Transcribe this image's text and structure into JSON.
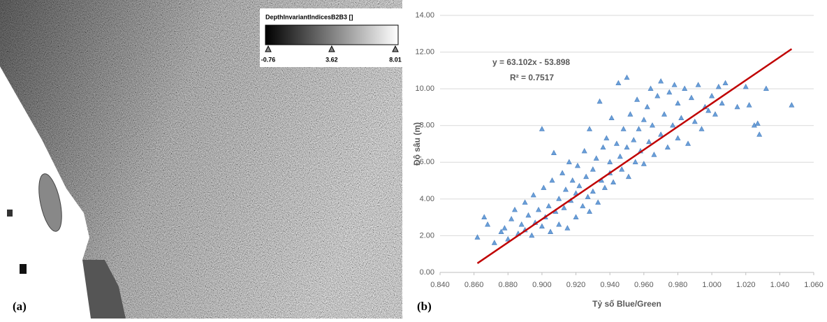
{
  "panel_a": {
    "label": "(a)",
    "legend_title": "DepthInvariantIndicesB2B3 []",
    "legend_ticks": [
      -0.76,
      3.62,
      8.01
    ]
  },
  "chart_data": {
    "type": "scatter",
    "panel_label": "(b)",
    "xlabel": "Tỷ số Blue/Green",
    "ylabel": "Độ sâu (m)",
    "xlim": [
      0.84,
      1.06
    ],
    "ylim": [
      0,
      14
    ],
    "xticks": [
      {
        "value": 0.84,
        "label": "0.840"
      },
      {
        "value": 0.86,
        "label": "0.860"
      },
      {
        "value": 0.88,
        "label": "0.880"
      },
      {
        "value": 0.9,
        "label": "0.900"
      },
      {
        "value": 0.92,
        "label": "0.920"
      },
      {
        "value": 0.94,
        "label": "0.940"
      },
      {
        "value": 0.96,
        "label": "0.960"
      },
      {
        "value": 0.98,
        "label": "0.980"
      },
      {
        "value": 1.0,
        "label": "1.000"
      },
      {
        "value": 1.02,
        "label": "1.020"
      },
      {
        "value": 1.04,
        "label": "1.040"
      },
      {
        "value": 1.06,
        "label": "1.060"
      }
    ],
    "yticks": [
      {
        "value": 0,
        "label": "0.00"
      },
      {
        "value": 2,
        "label": "2.00"
      },
      {
        "value": 4,
        "label": "4.00"
      },
      {
        "value": 6,
        "label": "6.00"
      },
      {
        "value": 8,
        "label": "8.00"
      },
      {
        "value": 10,
        "label": "10.00"
      },
      {
        "value": 12,
        "label": "12.00"
      },
      {
        "value": 14,
        "label": "14.00"
      }
    ],
    "color": "#6a9fd8",
    "x": [
      0.862,
      0.866,
      0.868,
      0.872,
      0.876,
      0.878,
      0.88,
      0.882,
      0.884,
      0.886,
      0.888,
      0.89,
      0.89,
      0.892,
      0.894,
      0.895,
      0.896,
      0.898,
      0.9,
      0.9,
      0.901,
      0.902,
      0.904,
      0.905,
      0.906,
      0.907,
      0.908,
      0.91,
      0.91,
      0.912,
      0.913,
      0.914,
      0.915,
      0.916,
      0.917,
      0.918,
      0.92,
      0.92,
      0.921,
      0.922,
      0.924,
      0.925,
      0.926,
      0.927,
      0.928,
      0.928,
      0.93,
      0.93,
      0.932,
      0.933,
      0.934,
      0.935,
      0.936,
      0.937,
      0.938,
      0.94,
      0.94,
      0.941,
      0.942,
      0.944,
      0.945,
      0.946,
      0.947,
      0.948,
      0.95,
      0.95,
      0.951,
      0.952,
      0.954,
      0.955,
      0.956,
      0.957,
      0.958,
      0.96,
      0.96,
      0.962,
      0.963,
      0.964,
      0.965,
      0.966,
      0.968,
      0.97,
      0.97,
      0.972,
      0.974,
      0.975,
      0.977,
      0.978,
      0.98,
      0.98,
      0.982,
      0.984,
      0.986,
      0.988,
      0.99,
      0.992,
      0.994,
      0.996,
      0.998,
      1.0,
      1.002,
      1.004,
      1.006,
      1.008,
      1.015,
      1.02,
      1.022,
      1.025,
      1.027,
      1.028,
      1.032,
      1.047
    ],
    "y": [
      1.9,
      3.0,
      2.6,
      1.6,
      2.2,
      2.4,
      1.8,
      2.9,
      3.4,
      2.1,
      2.6,
      3.8,
      2.3,
      3.1,
      2.0,
      4.2,
      2.7,
      3.4,
      7.8,
      2.5,
      4.6,
      3.0,
      3.6,
      2.2,
      5.0,
      6.5,
      3.3,
      4.0,
      2.6,
      5.4,
      3.5,
      4.5,
      2.4,
      6.0,
      3.9,
      5.0,
      4.3,
      3.0,
      5.8,
      4.7,
      3.6,
      6.6,
      5.2,
      4.1,
      7.8,
      3.3,
      5.6,
      4.4,
      6.2,
      3.8,
      9.3,
      5.0,
      6.8,
      4.6,
      7.3,
      5.4,
      6.0,
      8.4,
      4.9,
      7.0,
      10.3,
      6.3,
      5.6,
      7.8,
      10.6,
      6.8,
      5.2,
      8.6,
      7.2,
      6.0,
      9.4,
      7.8,
      6.6,
      8.3,
      5.9,
      9.0,
      7.1,
      10.0,
      8.0,
      6.4,
      9.6,
      10.4,
      7.5,
      8.6,
      6.8,
      9.8,
      8.0,
      10.2,
      7.3,
      9.2,
      8.4,
      10.0,
      7.0,
      9.5,
      8.2,
      10.2,
      7.8,
      9.0,
      8.8,
      9.6,
      8.6,
      10.1,
      9.2,
      10.3,
      9.0,
      10.1,
      9.1,
      8.0,
      8.1,
      7.5,
      10.0,
      9.1
    ],
    "trendline": {
      "slope": 63.102,
      "intercept": -53.898,
      "x": [
        0.862,
        1.047
      ],
      "color": "#c00000"
    },
    "annotations": [
      "y = 63.102x - 53.898",
      "R² = 0.7517"
    ]
  }
}
